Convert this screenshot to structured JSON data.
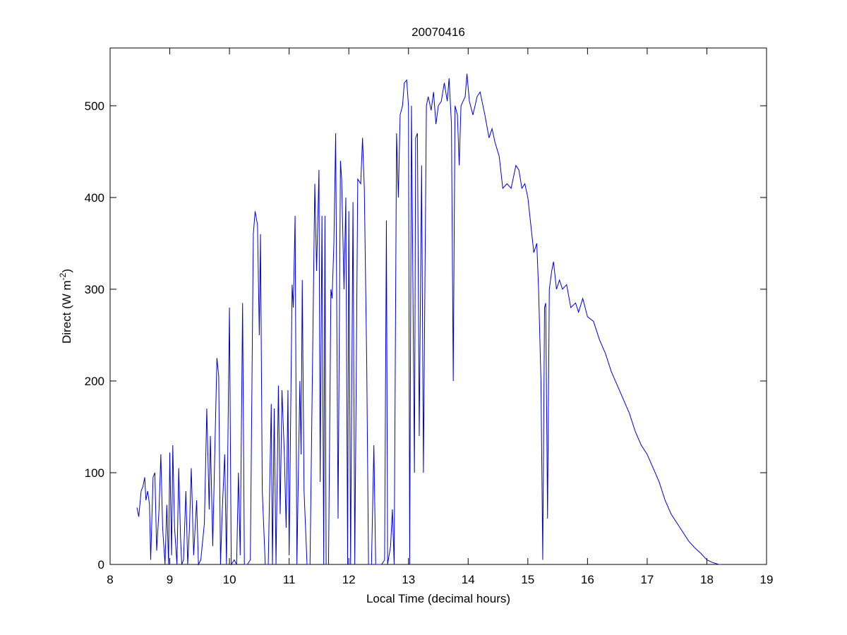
{
  "chart_data": {
    "type": "line",
    "title": "20070416",
    "xlabel": "Local Time (decimal hours)",
    "ylabel": {
      "text": "Direct (W m",
      "superscript": "-2",
      "suffix": ")"
    },
    "color": "#0000cc",
    "xlim": [
      8,
      19
    ],
    "xticks": [
      8,
      9,
      10,
      11,
      12,
      13,
      14,
      15,
      16,
      17,
      18,
      19
    ],
    "ylim": [
      0,
      563
    ],
    "yticks": [
      0,
      100,
      200,
      300,
      400,
      500
    ],
    "x": [
      8.45,
      8.48,
      8.52,
      8.55,
      8.58,
      8.6,
      8.63,
      8.66,
      8.68,
      8.72,
      8.75,
      8.78,
      8.82,
      8.85,
      8.88,
      8.92,
      8.95,
      8.98,
      9.0,
      9.03,
      9.05,
      9.08,
      9.12,
      9.15,
      9.18,
      9.2,
      9.23,
      9.27,
      9.3,
      9.33,
      9.36,
      9.4,
      9.45,
      9.48,
      9.52,
      9.58,
      9.62,
      9.66,
      9.68,
      9.72,
      9.75,
      9.79,
      9.82,
      9.85,
      9.88,
      9.92,
      9.95,
      10.0,
      10.03,
      10.08,
      10.12,
      10.15,
      10.18,
      10.22,
      10.25,
      10.3,
      10.35,
      10.4,
      10.43,
      10.47,
      10.5,
      10.52,
      10.55,
      10.6,
      10.65,
      10.7,
      10.72,
      10.75,
      10.78,
      10.82,
      10.85,
      10.88,
      10.92,
      10.95,
      10.98,
      11.0,
      11.05,
      11.07,
      11.1,
      11.13,
      11.18,
      11.2,
      11.22,
      11.25,
      11.3,
      11.35,
      11.4,
      11.43,
      11.46,
      11.5,
      11.52,
      11.55,
      11.58,
      11.6,
      11.62,
      11.66,
      11.7,
      11.72,
      11.75,
      11.78,
      11.82,
      11.86,
      11.88,
      11.92,
      11.95,
      11.98,
      12.0,
      12.03,
      12.07,
      12.1,
      12.15,
      12.2,
      12.23,
      12.26,
      12.3,
      12.33,
      12.38,
      12.42,
      12.45,
      12.5,
      12.55,
      12.6,
      12.63,
      12.65,
      12.7,
      12.73,
      12.76,
      12.8,
      12.83,
      12.86,
      12.9,
      12.93,
      12.97,
      13.0,
      13.02,
      13.05,
      13.1,
      13.12,
      13.15,
      13.18,
      13.22,
      13.25,
      13.3,
      13.33,
      13.38,
      13.42,
      13.46,
      13.5,
      13.55,
      13.6,
      13.65,
      13.68,
      13.72,
      13.75,
      13.78,
      13.82,
      13.85,
      13.88,
      13.95,
      13.98,
      14.02,
      14.08,
      14.15,
      14.2,
      14.28,
      14.35,
      14.4,
      14.45,
      14.52,
      14.58,
      14.65,
      14.72,
      14.8,
      14.85,
      14.9,
      14.95,
      15.0,
      15.05,
      15.1,
      15.15,
      15.18,
      15.22,
      15.25,
      15.28,
      15.3,
      15.33,
      15.36,
      15.4,
      15.43,
      15.48,
      15.53,
      15.58,
      15.65,
      15.72,
      15.8,
      15.85,
      15.92,
      16.0,
      16.1,
      16.2,
      16.3,
      16.4,
      16.5,
      16.6,
      16.7,
      16.8,
      16.9,
      17.0,
      17.1,
      17.2,
      17.3,
      17.4,
      17.5,
      17.6,
      17.7,
      17.8,
      17.9,
      18.0,
      18.1,
      18.2,
      18.25
    ],
    "values": [
      62,
      52,
      80,
      85,
      95,
      70,
      80,
      65,
      5,
      95,
      100,
      15,
      60,
      120,
      40,
      0,
      65,
      0,
      122,
      10,
      130,
      40,
      0,
      105,
      30,
      0,
      5,
      80,
      0,
      40,
      105,
      10,
      70,
      0,
      5,
      45,
      170,
      60,
      140,
      20,
      110,
      225,
      205,
      0,
      60,
      120,
      0,
      280,
      0,
      5,
      0,
      100,
      10,
      285,
      0,
      0,
      5,
      360,
      385,
      370,
      250,
      360,
      80,
      0,
      0,
      175,
      0,
      170,
      0,
      195,
      55,
      190,
      120,
      40,
      190,
      10,
      305,
      280,
      380,
      0,
      200,
      120,
      310,
      80,
      0,
      0,
      260,
      415,
      320,
      430,
      90,
      380,
      0,
      380,
      0,
      0,
      300,
      290,
      350,
      470,
      50,
      440,
      420,
      300,
      400,
      0,
      385,
      0,
      395,
      0,
      420,
      415,
      465,
      410,
      220,
      0,
      0,
      130,
      0,
      0,
      0,
      5,
      375,
      0,
      20,
      60,
      0,
      470,
      400,
      490,
      500,
      525,
      528,
      500,
      0,
      500,
      100,
      465,
      470,
      140,
      435,
      100,
      500,
      510,
      495,
      515,
      480,
      500,
      505,
      525,
      505,
      530,
      480,
      200,
      500,
      490,
      435,
      500,
      510,
      535,
      505,
      490,
      510,
      515,
      490,
      465,
      475,
      460,
      445,
      410,
      415,
      410,
      435,
      430,
      410,
      415,
      400,
      370,
      340,
      350,
      300,
      200,
      5,
      280,
      285,
      50,
      300,
      320,
      330,
      300,
      310,
      300,
      305,
      280,
      285,
      275,
      290,
      270,
      265,
      245,
      230,
      210,
      195,
      180,
      165,
      145,
      130,
      120,
      105,
      90,
      70,
      55,
      45,
      35,
      25,
      18,
      12,
      5,
      2,
      0,
      0
    ]
  }
}
